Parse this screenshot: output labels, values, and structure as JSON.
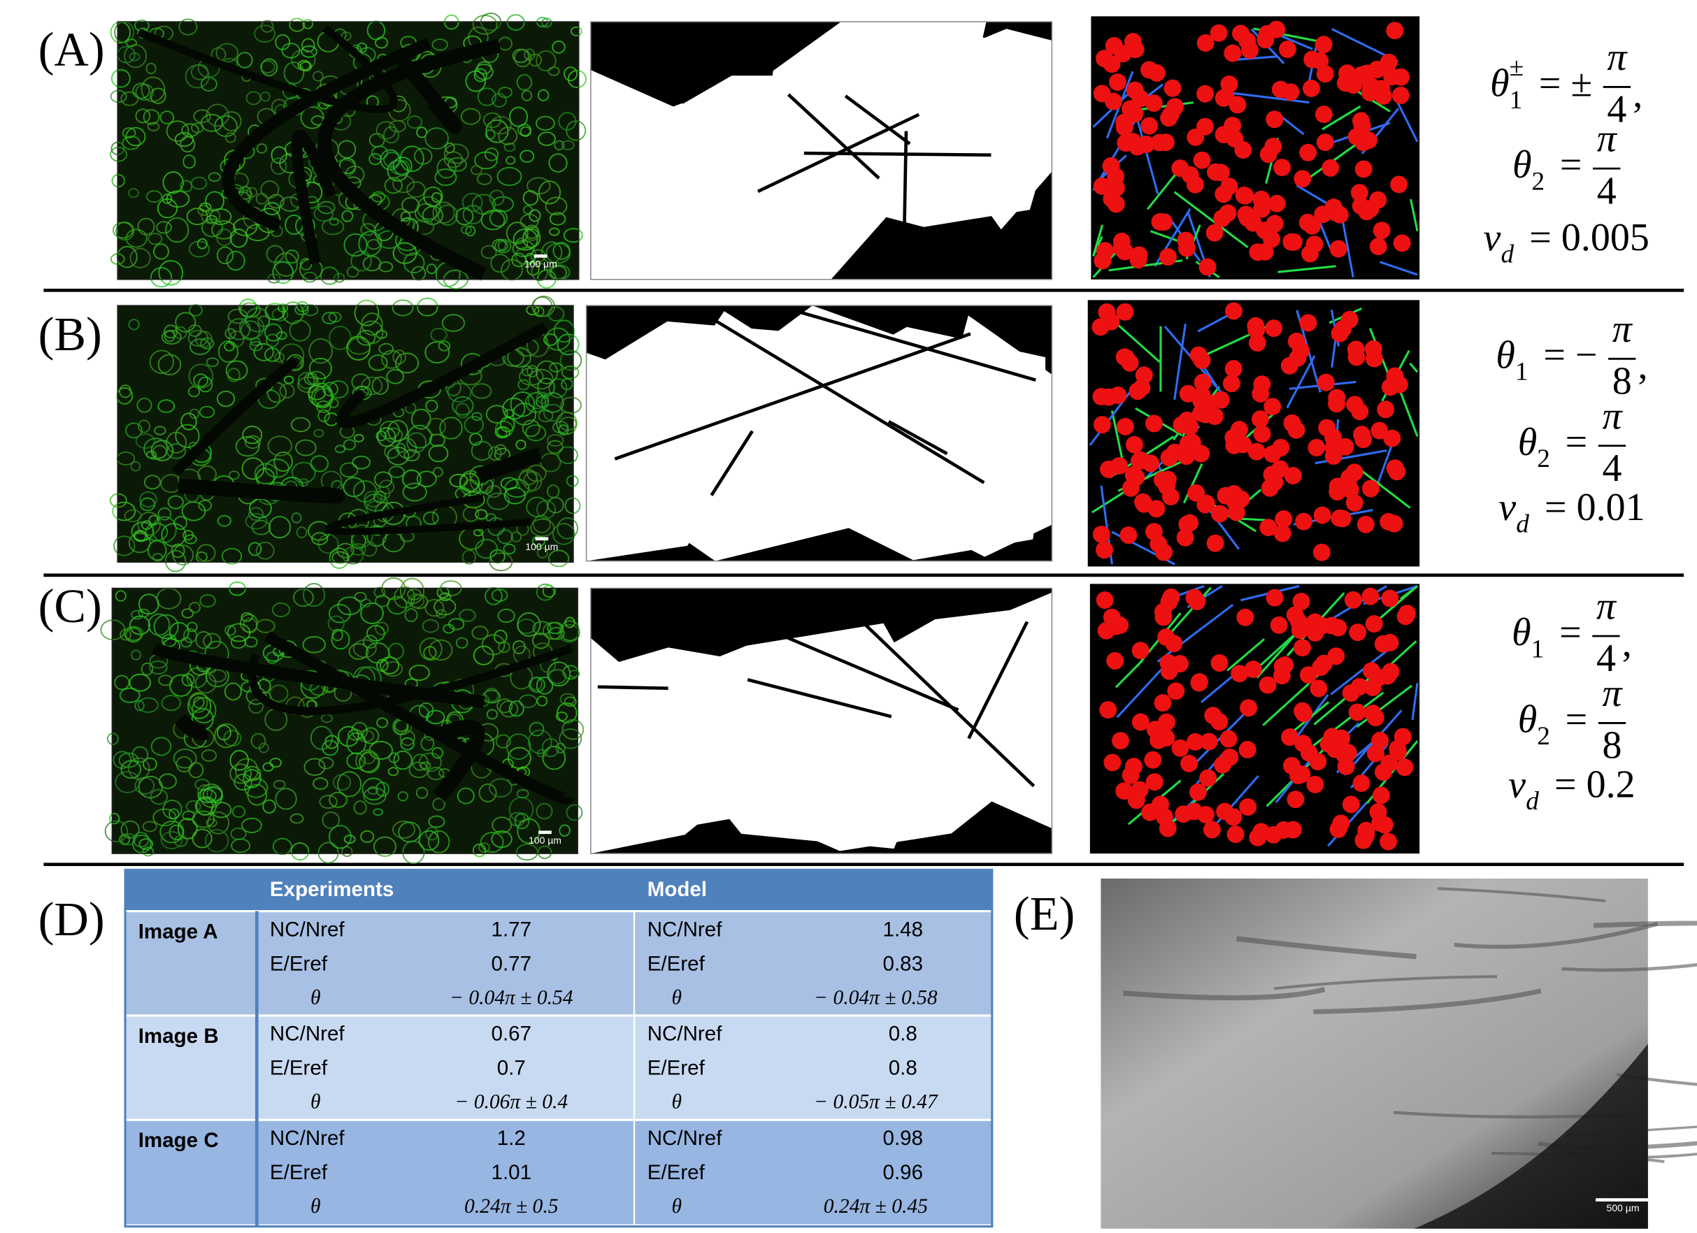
{
  "panels": [
    {
      "label": "(A)",
      "scale_bar": "100 µm",
      "equations": [
        {
          "lhs": "θ",
          "sub": "1",
          "sup": "±",
          "op": "= ±",
          "num": "π",
          "den": "4",
          "tail": ","
        },
        {
          "lhs": "θ",
          "sub": "2",
          "op": "=",
          "num": "π",
          "den": "4"
        },
        {
          "lhs": "ν",
          "sub": "d",
          "op": "= 0.005"
        }
      ]
    },
    {
      "label": "(B)",
      "scale_bar": "100 µm",
      "equations": [
        {
          "lhs": "θ",
          "sub": "1",
          "op": "= −",
          "num": "π",
          "den": "8",
          "tail": ","
        },
        {
          "lhs": "θ",
          "sub": "2",
          "op": "=",
          "num": "π",
          "den": "4"
        },
        {
          "lhs": "ν",
          "sub": "d",
          "op": "= 0.01"
        }
      ]
    },
    {
      "label": "(C)",
      "scale_bar": "100 µm",
      "equations": [
        {
          "lhs": "θ",
          "sub": "1",
          "op": "=",
          "num": "π",
          "den": "4",
          "tail": ","
        },
        {
          "lhs": "θ",
          "sub": "2",
          "op": "=",
          "num": "π",
          "den": "8"
        },
        {
          "lhs": "ν",
          "sub": "d",
          "op": "= 0.2"
        }
      ]
    }
  ],
  "panel_d": {
    "label": "(D)"
  },
  "table": {
    "headers": [
      "Experiments",
      "Model"
    ],
    "groups": [
      {
        "label": "Image A",
        "rows": [
          [
            "NC/Nref",
            "1.77",
            "NC/Nref",
            "1.48"
          ],
          [
            "E/Eref",
            "0.77",
            "E/Eref",
            "0.83"
          ],
          [
            "θ",
            "− 0.04π ± 0.54",
            "θ",
            "− 0.04π ± 0.58"
          ]
        ]
      },
      {
        "label": "Image B",
        "rows": [
          [
            "NC/Nref",
            "0.67",
            "NC/Nref",
            "0.8"
          ],
          [
            "E/Eref",
            "0.7",
            "E/Eref",
            "0.8"
          ],
          [
            "θ",
            "− 0.06π ± 0.4",
            "θ",
            "− 0.05π ± 0.47"
          ]
        ]
      },
      {
        "label": "Image C",
        "rows": [
          [
            "NC/Nref",
            "1.2",
            "NC/Nref",
            "0.98"
          ],
          [
            "E/Eref",
            "1.01",
            "E/Eref",
            "0.96"
          ],
          [
            "θ",
            "0.24π ± 0.5",
            "θ",
            "0.24π ± 0.45"
          ]
        ]
      }
    ]
  },
  "panel_e": {
    "label": "(E)",
    "scale_bar": "500 µm"
  }
}
